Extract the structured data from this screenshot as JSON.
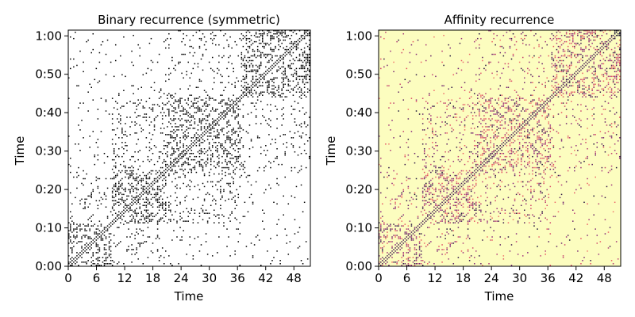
{
  "chart_data": [
    {
      "type": "heatmap",
      "title": "Binary recurrence (symmetric)",
      "xlabel": "Time",
      "ylabel": "Time",
      "x_ticks": [
        "0",
        "6",
        "12",
        "18",
        "24",
        "30",
        "36",
        "42",
        "48"
      ],
      "y_ticks": [
        "0:00",
        "0:10",
        "0:20",
        "0:30",
        "0:40",
        "0:50",
        "1:00"
      ],
      "x_range": [
        0,
        51.5
      ],
      "y_range_seconds": [
        0,
        61.5
      ],
      "colormap": "binary",
      "colors": {
        "background": "#ffffff",
        "recurrence": "#000000"
      },
      "structure": {
        "main_diagonal": true,
        "blocks_seconds": [
          [
            0,
            11
          ],
          [
            11,
            25
          ],
          [
            25,
            44
          ],
          [
            44,
            61.5
          ]
        ]
      }
    },
    {
      "type": "heatmap",
      "title": "Affinity recurrence",
      "xlabel": "Time",
      "ylabel": "Time",
      "x_ticks": [
        "0",
        "6",
        "12",
        "18",
        "24",
        "30",
        "36",
        "42",
        "48"
      ],
      "y_ticks": [
        "0:00",
        "0:10",
        "0:20",
        "0:30",
        "0:40",
        "0:50",
        "1:00"
      ],
      "x_range": [
        0,
        51.5
      ],
      "y_range_seconds": [
        0,
        61.5
      ],
      "colormap": "magma_r",
      "colors": {
        "background": "#fcfdbf",
        "low": "#fcb47c",
        "mid": "#b73779",
        "high": "#000004"
      },
      "structure": {
        "main_diagonal": true,
        "blocks_seconds": [
          [
            0,
            11
          ],
          [
            11,
            25
          ],
          [
            25,
            44
          ],
          [
            44,
            61.5
          ]
        ]
      }
    }
  ]
}
